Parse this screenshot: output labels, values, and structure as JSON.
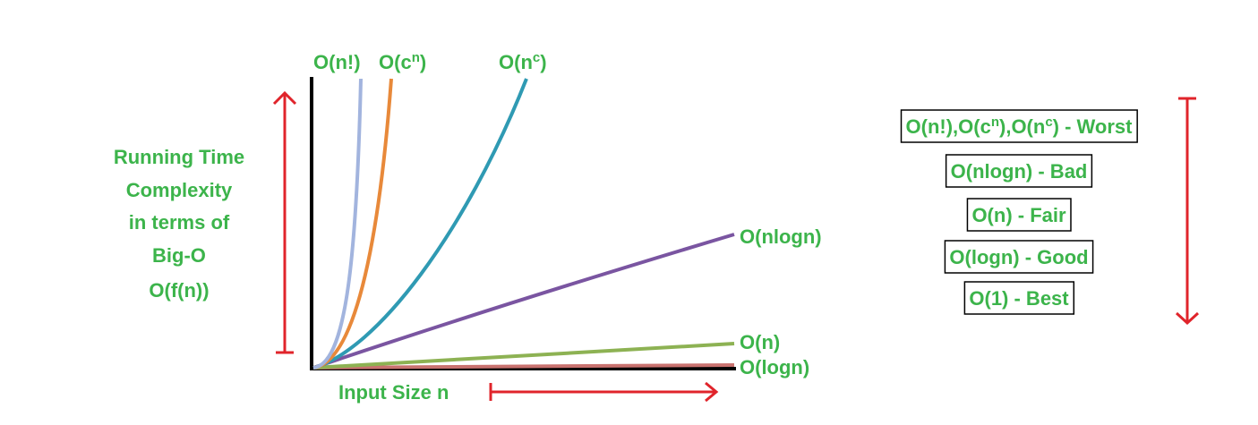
{
  "y_axis_label": [
    "Running Time",
    "Complexity",
    "in terms of",
    "Big-O",
    "O(f(n))"
  ],
  "x_axis_label": "Input Size n",
  "curves": [
    {
      "parts": [
        {
          "text": "O(n!)"
        }
      ]
    },
    {
      "parts": [
        {
          "text": "O(c"
        },
        {
          "text": "n",
          "sup": true
        },
        {
          "text": ")"
        }
      ]
    },
    {
      "parts": [
        {
          "text": "O(n"
        },
        {
          "text": "c",
          "sup": true
        },
        {
          "text": ")"
        }
      ]
    },
    {
      "parts": [
        {
          "text": "O(nlogn)"
        }
      ]
    },
    {
      "parts": [
        {
          "text": "O(n)"
        }
      ]
    },
    {
      "parts": [
        {
          "text": "O(logn)"
        }
      ]
    }
  ],
  "ranking": [
    {
      "parts": [
        {
          "text": "O(n!),O(c"
        },
        {
          "text": "n",
          "sup": true
        },
        {
          "text": "),O(n"
        },
        {
          "text": "c",
          "sup": true
        },
        {
          "text": ") - Worst"
        }
      ]
    },
    {
      "parts": [
        {
          "text": "O(nlogn) - Bad"
        }
      ]
    },
    {
      "parts": [
        {
          "text": "O(n) - Fair"
        }
      ]
    },
    {
      "parts": [
        {
          "text": "O(logn) - Good"
        }
      ]
    },
    {
      "parts": [
        {
          "text": "O(1) - Best"
        }
      ]
    }
  ]
}
